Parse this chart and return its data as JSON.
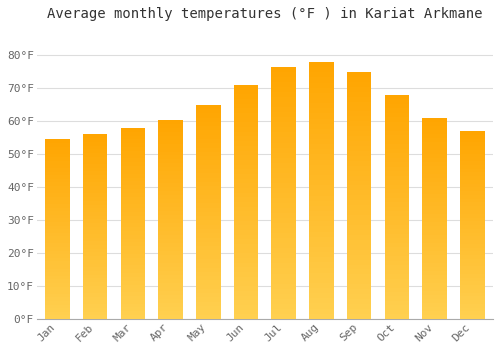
{
  "title": "Average monthly temperatures (°F ) in Kariat Arkmane",
  "months": [
    "Jan",
    "Feb",
    "Mar",
    "Apr",
    "May",
    "Jun",
    "Jul",
    "Aug",
    "Sep",
    "Oct",
    "Nov",
    "Dec"
  ],
  "values": [
    54.5,
    56.0,
    58.0,
    60.5,
    65.0,
    71.0,
    76.5,
    78.0,
    75.0,
    68.0,
    61.0,
    57.0
  ],
  "bar_color_main": "#FFA500",
  "bar_color_light": "#FFD580",
  "ylim": [
    0,
    88
  ],
  "yticks": [
    0,
    10,
    20,
    30,
    40,
    50,
    60,
    70,
    80
  ],
  "ytick_labels": [
    "0°F",
    "10°F",
    "20°F",
    "30°F",
    "40°F",
    "50°F",
    "60°F",
    "70°F",
    "80°F"
  ],
  "background_color": "#FFFFFF",
  "grid_color": "#DDDDDD",
  "title_fontsize": 10,
  "tick_fontsize": 8,
  "bar_width": 0.65
}
